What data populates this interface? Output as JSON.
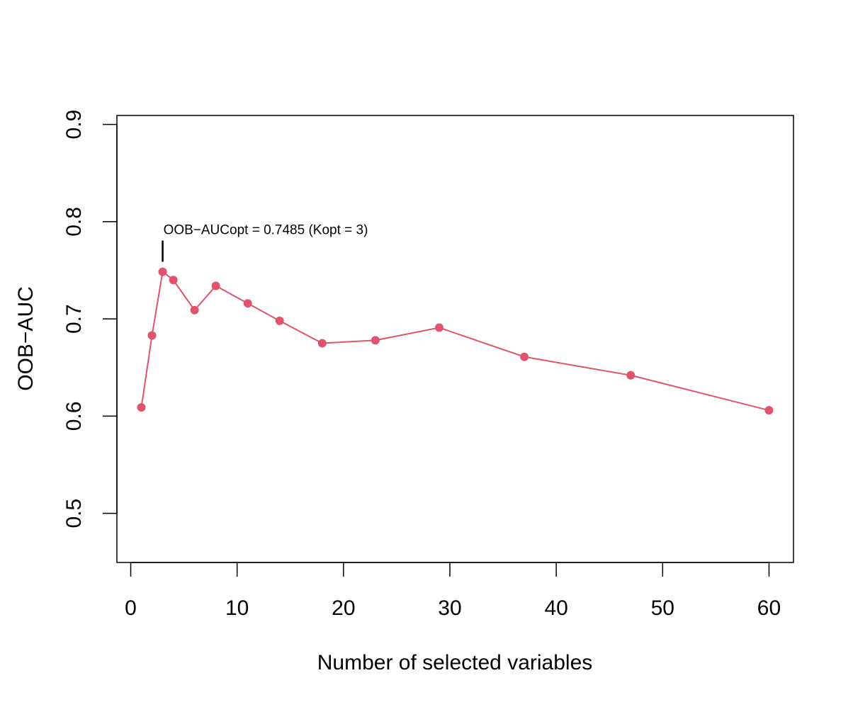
{
  "chart_data": {
    "type": "line",
    "xlabel": "Number of selected variables",
    "ylabel": "OOB−AUC",
    "xlim": [
      -1.3,
      62.3
    ],
    "ylim": [
      0.4495,
      0.9092
    ],
    "xticks": [
      0,
      10,
      20,
      30,
      40,
      50,
      60
    ],
    "yticks": [
      0.5,
      0.6,
      0.7,
      0.8,
      0.9
    ],
    "xtick_labels": [
      "0",
      "10",
      "20",
      "30",
      "40",
      "50",
      "60"
    ],
    "ytick_labels": [
      "0.5",
      "0.6",
      "0.7",
      "0.8",
      "0.9"
    ],
    "grid": false,
    "series": [
      {
        "color": "#DF536B",
        "x": [
          1,
          2,
          3,
          4,
          6,
          8,
          11,
          14,
          18,
          23,
          29,
          37,
          47,
          60
        ],
        "y": [
          0.609,
          0.683,
          0.7485,
          0.74,
          0.709,
          0.734,
          0.716,
          0.698,
          0.675,
          0.678,
          0.691,
          0.661,
          0.642,
          0.606
        ]
      }
    ],
    "annotation": {
      "text": "OOB−AUCopt = 0.7485 (Kopt = 3)",
      "x": 3,
      "y": 0.7485
    }
  }
}
